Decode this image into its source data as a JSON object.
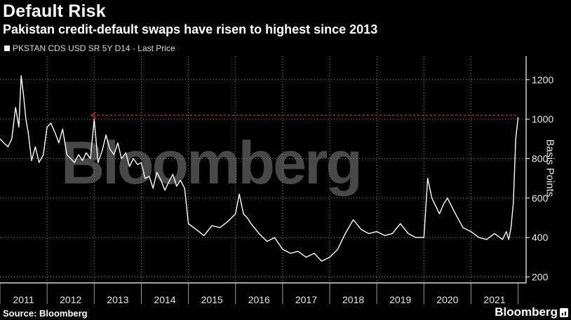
{
  "header": {
    "title": "Default Risk",
    "subtitle": "Pakistan credit-default swaps have risen to highest since 2013",
    "legend_label": "PKSTAN CDS USD SR 5Y D14 - Last Price"
  },
  "footer": {
    "source": "Source: Bloomberg",
    "brand": "Bloomberg"
  },
  "watermark": "Bloomberg",
  "colors": {
    "background": "#000000",
    "line": "#ffffff",
    "reference": "#e0202a",
    "grid": "#8a8a8a"
  },
  "chart_data": {
    "type": "line",
    "title": "Default Risk",
    "subtitle": "Pakistan credit-default swaps have risen to highest since 2013",
    "ylabel": "Basis Points",
    "xlabel": "",
    "x_tick_labels": [
      "2011",
      "2012",
      "2013",
      "2014",
      "2015",
      "2016",
      "2017",
      "2018",
      "2019",
      "2020",
      "2021"
    ],
    "y_ticks": [
      200,
      400,
      600,
      800,
      1000,
      1200
    ],
    "xlim": [
      2011.0,
      2022.17
    ],
    "ylim": [
      170,
      1320
    ],
    "grid": "dotted",
    "legend": "top-left",
    "series": [
      {
        "name": "PKSTAN CDS USD SR 5Y D14 - Last Price",
        "x": [
          2011.0,
          2011.08,
          2011.17,
          2011.25,
          2011.33,
          2011.4,
          2011.45,
          2011.5,
          2011.55,
          2011.6,
          2011.67,
          2011.75,
          2011.83,
          2011.92,
          2012.0,
          2012.08,
          2012.17,
          2012.25,
          2012.33,
          2012.42,
          2012.5,
          2012.58,
          2012.67,
          2012.75,
          2012.83,
          2012.92,
          2013.0,
          2013.08,
          2013.17,
          2013.25,
          2013.33,
          2013.42,
          2013.5,
          2013.58,
          2013.67,
          2013.75,
          2013.83,
          2013.92,
          2014.0,
          2014.08,
          2014.17,
          2014.25,
          2014.33,
          2014.42,
          2014.5,
          2014.58,
          2014.67,
          2014.75,
          2014.83,
          2014.92,
          2015.0,
          2015.17,
          2015.33,
          2015.5,
          2015.67,
          2015.83,
          2016.0,
          2016.08,
          2016.17,
          2016.25,
          2016.33,
          2016.5,
          2016.67,
          2016.83,
          2017.0,
          2017.17,
          2017.33,
          2017.5,
          2017.67,
          2017.83,
          2018.0,
          2018.17,
          2018.33,
          2018.5,
          2018.67,
          2018.83,
          2019.0,
          2019.17,
          2019.33,
          2019.5,
          2019.67,
          2019.83,
          2020.0,
          2020.08,
          2020.17,
          2020.25,
          2020.33,
          2020.42,
          2020.5,
          2020.67,
          2020.83,
          2021.0,
          2021.17,
          2021.33,
          2021.5,
          2021.67,
          2021.75,
          2021.8,
          2021.85,
          2021.9,
          2021.95,
          2022.0
        ],
        "values": [
          900,
          880,
          860,
          900,
          1060,
          960,
          1220,
          1120,
          1000,
          930,
          790,
          860,
          780,
          820,
          960,
          980,
          930,
          880,
          950,
          820,
          800,
          780,
          820,
          790,
          830,
          800,
          1000,
          780,
          840,
          920,
          850,
          820,
          880,
          800,
          830,
          760,
          800,
          770,
          780,
          700,
          710,
          650,
          730,
          690,
          640,
          680,
          720,
          660,
          690,
          650,
          470,
          440,
          410,
          460,
          450,
          480,
          520,
          620,
          520,
          500,
          470,
          420,
          380,
          400,
          340,
          320,
          330,
          300,
          320,
          280,
          300,
          340,
          420,
          490,
          440,
          420,
          430,
          410,
          420,
          470,
          420,
          400,
          400,
          700,
          600,
          560,
          520,
          570,
          600,
          520,
          450,
          430,
          400,
          390,
          420,
          390,
          430,
          390,
          450,
          580,
          900,
          1010
        ]
      }
    ],
    "reference_line": {
      "value": 1020,
      "from_x": 2012.92,
      "to_x": 2022.0,
      "style": "dashed"
    }
  }
}
